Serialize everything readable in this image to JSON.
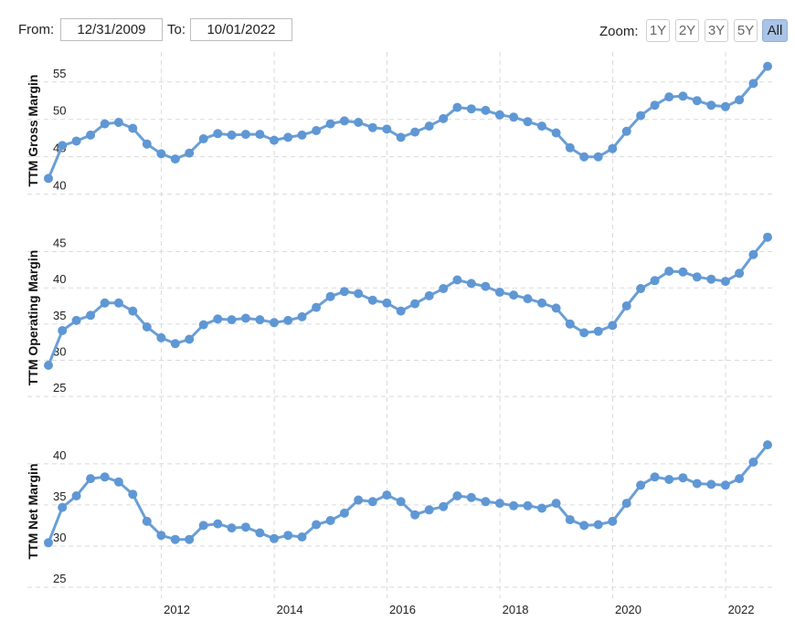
{
  "toolbar": {
    "from_label": "From:",
    "from_value": "12/31/2009",
    "to_label": "To:",
    "to_value": "10/01/2022",
    "zoom_label": "Zoom:",
    "zoom_options": [
      "1Y",
      "2Y",
      "3Y",
      "5Y",
      "All"
    ],
    "zoom_selected": "All"
  },
  "colors": {
    "series": "#5f97d4",
    "zoom_active": "#aac4e8",
    "grid": "#dadada"
  },
  "chart_data": [
    {
      "type": "line",
      "ylabel": "TTM Gross Margin",
      "ylim": [
        38,
        59
      ],
      "yticks": [
        40,
        45,
        50,
        55
      ],
      "x_ticks": [
        "2012",
        "2014",
        "2016",
        "2018",
        "2020",
        "2022"
      ],
      "grid": true,
      "series": [
        {
          "x": [
            "2009-12-31",
            "2010-03-31",
            "2010-06-30",
            "2010-09-30",
            "2010-12-31",
            "2011-03-31",
            "2011-06-30",
            "2011-09-30",
            "2011-12-31",
            "2012-03-31",
            "2012-06-30",
            "2012-09-30",
            "2012-12-31",
            "2013-03-31",
            "2013-06-30",
            "2013-09-30",
            "2013-12-31",
            "2014-03-31",
            "2014-06-30",
            "2014-09-30",
            "2014-12-31",
            "2015-03-31",
            "2015-06-30",
            "2015-09-30",
            "2015-12-31",
            "2016-03-31",
            "2016-06-30",
            "2016-09-30",
            "2016-12-31",
            "2017-03-31",
            "2017-06-30",
            "2017-09-30",
            "2017-12-31",
            "2018-03-31",
            "2018-06-30",
            "2018-09-30",
            "2018-12-31",
            "2019-03-31",
            "2019-06-30",
            "2019-09-30",
            "2019-12-31",
            "2020-03-31",
            "2020-06-30",
            "2020-09-30",
            "2020-12-31",
            "2021-03-31",
            "2021-06-30",
            "2021-09-30",
            "2021-12-31",
            "2022-03-31",
            "2022-06-30",
            "2022-09-30"
          ],
          "values": [
            42.1,
            46.5,
            47.1,
            47.9,
            49.4,
            49.6,
            48.8,
            46.7,
            45.4,
            44.7,
            45.5,
            47.4,
            48.1,
            47.9,
            48.0,
            48.0,
            47.2,
            47.6,
            47.9,
            48.5,
            49.4,
            49.8,
            49.6,
            48.9,
            48.7,
            47.6,
            48.3,
            49.1,
            50.1,
            51.6,
            51.4,
            51.2,
            50.6,
            50.3,
            49.7,
            49.1,
            48.2,
            46.2,
            45.0,
            45.0,
            46.1,
            48.4,
            50.5,
            51.9,
            53.0,
            53.1,
            52.5,
            51.9,
            51.7,
            52.6,
            54.8,
            57.1
          ]
        }
      ]
    },
    {
      "type": "line",
      "ylabel": "TTM Operating Margin",
      "ylim": [
        23,
        48.6
      ],
      "yticks": [
        25,
        30,
        35,
        40,
        45
      ],
      "x_ticks": [
        "2012",
        "2014",
        "2016",
        "2018",
        "2020",
        "2022"
      ],
      "grid": true,
      "series": [
        {
          "x": [
            "2009-12-31",
            "2010-03-31",
            "2010-06-30",
            "2010-09-30",
            "2010-12-31",
            "2011-03-31",
            "2011-06-30",
            "2011-09-30",
            "2011-12-31",
            "2012-03-31",
            "2012-06-30",
            "2012-09-30",
            "2012-12-31",
            "2013-03-31",
            "2013-06-30",
            "2013-09-30",
            "2013-12-31",
            "2014-03-31",
            "2014-06-30",
            "2014-09-30",
            "2014-12-31",
            "2015-03-31",
            "2015-06-30",
            "2015-09-30",
            "2015-12-31",
            "2016-03-31",
            "2016-06-30",
            "2016-09-30",
            "2016-12-31",
            "2017-03-31",
            "2017-06-30",
            "2017-09-30",
            "2017-12-31",
            "2018-03-31",
            "2018-06-30",
            "2018-09-30",
            "2018-12-31",
            "2019-03-31",
            "2019-06-30",
            "2019-09-30",
            "2019-12-31",
            "2020-03-31",
            "2020-06-30",
            "2020-09-30",
            "2020-12-31",
            "2021-03-31",
            "2021-06-30",
            "2021-09-30",
            "2021-12-31",
            "2022-03-31",
            "2022-06-30",
            "2022-09-30"
          ],
          "values": [
            29.3,
            34.1,
            35.5,
            36.2,
            37.9,
            37.9,
            36.8,
            34.6,
            33.1,
            32.3,
            32.9,
            34.9,
            35.7,
            35.6,
            35.8,
            35.6,
            35.2,
            35.5,
            36.0,
            37.3,
            38.8,
            39.5,
            39.2,
            38.3,
            37.9,
            36.8,
            37.8,
            38.9,
            39.9,
            41.1,
            40.6,
            40.2,
            39.4,
            39.0,
            38.5,
            37.9,
            37.2,
            35.0,
            33.8,
            34.0,
            34.8,
            37.5,
            39.9,
            41.0,
            42.3,
            42.2,
            41.5,
            41.2,
            40.9,
            42.0,
            44.6,
            47.0
          ]
        }
      ]
    },
    {
      "type": "line",
      "ylabel": "TTM Net Margin",
      "ylim": [
        24,
        44.2
      ],
      "yticks": [
        25,
        30,
        35,
        40
      ],
      "x_ticks": [
        "2012",
        "2014",
        "2016",
        "2018",
        "2020",
        "2022"
      ],
      "grid": true,
      "series": [
        {
          "x": [
            "2009-12-31",
            "2010-03-31",
            "2010-06-30",
            "2010-09-30",
            "2010-12-31",
            "2011-03-31",
            "2011-06-30",
            "2011-09-30",
            "2011-12-31",
            "2012-03-31",
            "2012-06-30",
            "2012-09-30",
            "2012-12-31",
            "2013-03-31",
            "2013-06-30",
            "2013-09-30",
            "2013-12-31",
            "2014-03-31",
            "2014-06-30",
            "2014-09-30",
            "2014-12-31",
            "2015-03-31",
            "2015-06-30",
            "2015-09-30",
            "2015-12-31",
            "2016-03-31",
            "2016-06-30",
            "2016-09-30",
            "2016-12-31",
            "2017-03-31",
            "2017-06-30",
            "2017-09-30",
            "2017-12-31",
            "2018-03-31",
            "2018-06-30",
            "2018-09-30",
            "2018-12-31",
            "2019-03-31",
            "2019-06-30",
            "2019-09-30",
            "2019-12-31",
            "2020-03-31",
            "2020-06-30",
            "2020-09-30",
            "2020-12-31",
            "2021-03-31",
            "2021-06-30",
            "2021-09-30",
            "2021-12-31",
            "2022-03-31",
            "2022-06-30",
            "2022-09-30"
          ],
          "values": [
            30.4,
            34.7,
            36.1,
            38.2,
            38.4,
            37.8,
            36.3,
            33.0,
            31.3,
            30.8,
            30.8,
            32.5,
            32.7,
            32.2,
            32.3,
            31.6,
            30.9,
            31.3,
            31.1,
            32.6,
            33.1,
            34.0,
            35.6,
            35.4,
            36.2,
            35.4,
            33.8,
            34.4,
            34.8,
            36.1,
            35.9,
            35.4,
            35.2,
            34.9,
            34.9,
            34.6,
            35.2,
            33.2,
            32.5,
            32.6,
            33.0,
            35.2,
            37.4,
            38.4,
            38.1,
            38.3,
            37.6,
            37.5,
            37.4,
            38.2,
            40.2,
            42.3
          ]
        }
      ]
    }
  ]
}
